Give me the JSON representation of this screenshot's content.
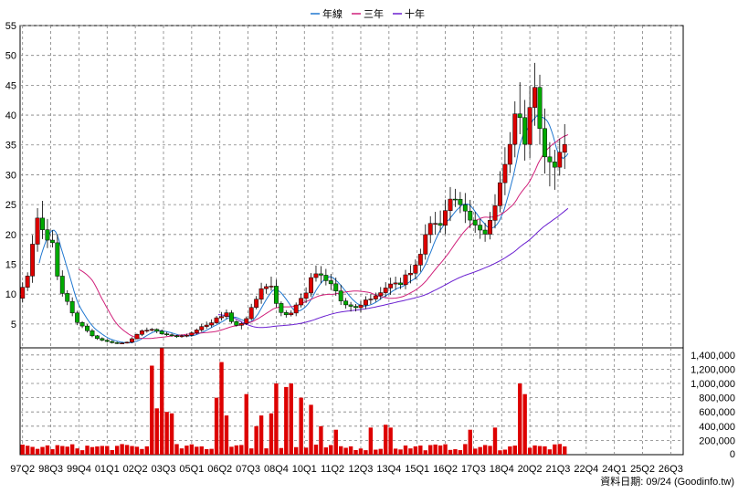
{
  "legend": [
    {
      "name": "年線",
      "color": "#1f77d0"
    },
    {
      "name": "三年",
      "color": "#d0207a"
    },
    {
      "name": "十年",
      "color": "#6a1fd0"
    }
  ],
  "source": "資料日期: 09/24 (Goodinfo.tw)",
  "colors": {
    "up": "#dd0000",
    "down": "#00aa00",
    "volume": "#dd0000",
    "grid": "#808080"
  },
  "chart_data": [
    {
      "type": "candlestick",
      "ylim": [
        1,
        55
      ],
      "yticks": [
        5,
        10,
        15,
        20,
        25,
        30,
        35,
        40,
        45,
        50,
        55
      ],
      "grid": true,
      "legend_position": "top-center",
      "x_labels": [
        "97Q2",
        "98Q3",
        "99Q4",
        "01Q1",
        "02Q2",
        "03Q3",
        "05Q1",
        "06Q2",
        "07Q3",
        "08Q4",
        "10Q1",
        "11Q2",
        "12Q3",
        "13Q4",
        "15Q1",
        "16Q2",
        "17Q3",
        "18Q4",
        "20Q2",
        "21Q3",
        "22Q4",
        "24Q1",
        "25Q2",
        "26Q3"
      ],
      "label_month_index": [
        1,
        18,
        35,
        52,
        69,
        86,
        103,
        120,
        137,
        154,
        171,
        188,
        205,
        222,
        239,
        256,
        273,
        290,
        307,
        324,
        341,
        358,
        375,
        392
      ],
      "month_count": 400,
      "anchors": [
        [
          0,
          10
        ],
        [
          3,
          12
        ],
        [
          6,
          13.5
        ],
        [
          8,
          18
        ],
        [
          10,
          22
        ],
        [
          12,
          23
        ],
        [
          14,
          21
        ],
        [
          16,
          20
        ],
        [
          18,
          19.5
        ],
        [
          20,
          18
        ],
        [
          22,
          15
        ],
        [
          24,
          11
        ],
        [
          27,
          9.5
        ],
        [
          30,
          8
        ],
        [
          33,
          6
        ],
        [
          36,
          5
        ],
        [
          40,
          4
        ],
        [
          44,
          3
        ],
        [
          48,
          2.5
        ],
        [
          53,
          2
        ],
        [
          58,
          1.8
        ],
        [
          62,
          1.8
        ],
        [
          66,
          2
        ],
        [
          70,
          3
        ],
        [
          75,
          4
        ],
        [
          80,
          4
        ],
        [
          85,
          3.5
        ],
        [
          90,
          3.2
        ],
        [
          95,
          2.8
        ],
        [
          100,
          3
        ],
        [
          105,
          3.8
        ],
        [
          110,
          4.5
        ],
        [
          115,
          5.2
        ],
        [
          120,
          6
        ],
        [
          124,
          7
        ],
        [
          128,
          5.5
        ],
        [
          132,
          4.5
        ],
        [
          136,
          5.5
        ],
        [
          140,
          8
        ],
        [
          144,
          10
        ],
        [
          148,
          11
        ],
        [
          151,
          12
        ],
        [
          154,
          9
        ],
        [
          158,
          7
        ],
        [
          162,
          6.5
        ],
        [
          166,
          7.5
        ],
        [
          170,
          9
        ],
        [
          174,
          11
        ],
        [
          178,
          14
        ],
        [
          182,
          13
        ],
        [
          186,
          12
        ],
        [
          190,
          11
        ],
        [
          194,
          9
        ],
        [
          198,
          8
        ],
        [
          202,
          7.5
        ],
        [
          206,
          8
        ],
        [
          210,
          9
        ],
        [
          214,
          10
        ],
        [
          218,
          10.5
        ],
        [
          222,
          11
        ],
        [
          226,
          11.5
        ],
        [
          230,
          12
        ],
        [
          234,
          13
        ],
        [
          238,
          14
        ],
        [
          242,
          17
        ],
        [
          246,
          21
        ],
        [
          250,
          23
        ],
        [
          254,
          22
        ],
        [
          258,
          24
        ],
        [
          262,
          26
        ],
        [
          266,
          25
        ],
        [
          270,
          23
        ],
        [
          274,
          21
        ],
        [
          278,
          20
        ],
        [
          282,
          21
        ],
        [
          286,
          23
        ],
        [
          290,
          28
        ],
        [
          294,
          32
        ],
        [
          298,
          38
        ],
        [
          300,
          42
        ],
        [
          302,
          39
        ],
        [
          305,
          36
        ],
        [
          308,
          40
        ],
        [
          311,
          44
        ],
        [
          313,
          40
        ],
        [
          316,
          35
        ],
        [
          319,
          32
        ],
        [
          322,
          31
        ],
        [
          325,
          34
        ],
        [
          328,
          36
        ],
        [
          330,
          37
        ]
      ],
      "series": [
        {
          "name": "年線",
          "window": 12
        },
        {
          "name": "三年",
          "window": 36
        },
        {
          "name": "十年",
          "window": 120
        }
      ]
    },
    {
      "type": "bar",
      "ylim": [
        0,
        1500000
      ],
      "yticks": [
        0,
        200000,
        400000,
        600000,
        800000,
        1000000,
        1200000,
        1400000
      ],
      "ytick_labels": [
        "0",
        "200,000",
        "400,000",
        "600,000",
        "800,000",
        "1,000,000",
        "1,200,000",
        "1,400,000"
      ],
      "grid": true,
      "spikes": [
        [
          80,
          1250000
        ],
        [
          84,
          650000
        ],
        [
          87,
          1600000
        ],
        [
          90,
          600000
        ],
        [
          93,
          580000
        ],
        [
          118,
          800000
        ],
        [
          122,
          1300000
        ],
        [
          126,
          550000
        ],
        [
          138,
          850000
        ],
        [
          142,
          400000
        ],
        [
          146,
          550000
        ],
        [
          152,
          580000
        ],
        [
          155,
          1000000
        ],
        [
          160,
          950000
        ],
        [
          165,
          1000000
        ],
        [
          170,
          800000
        ],
        [
          175,
          700000
        ],
        [
          182,
          400000
        ],
        [
          190,
          350000
        ],
        [
          212,
          380000
        ],
        [
          220,
          420000
        ],
        [
          224,
          380000
        ],
        [
          272,
          350000
        ],
        [
          286,
          380000
        ],
        [
          302,
          1000000
        ],
        [
          306,
          850000
        ]
      ]
    }
  ]
}
